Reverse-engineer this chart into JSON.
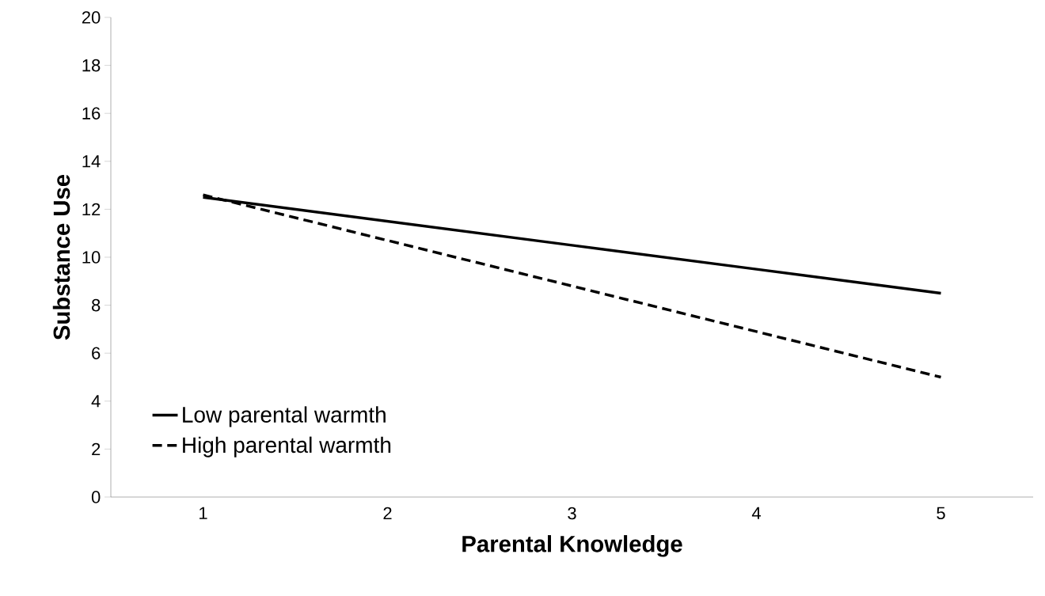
{
  "chart_data": {
    "type": "line",
    "xlabel": "Parental Knowledge",
    "ylabel": "Substance Use",
    "categories": [
      "1",
      "2",
      "3",
      "4",
      "5"
    ],
    "series": [
      {
        "name": "Low parental warmth",
        "color": "#000000",
        "line_style": "solid",
        "values": [
          12.5,
          11.5,
          10.5,
          9.5,
          8.5
        ]
      },
      {
        "name": "High parental warmth",
        "color": "#000000",
        "line_style": "dashed",
        "values": [
          12.6,
          10.7,
          8.8,
          6.9,
          5.0
        ]
      }
    ],
    "ylim": [
      0,
      20
    ],
    "yticks": [
      0,
      2,
      4,
      6,
      8,
      10,
      12,
      14,
      16,
      18,
      20
    ],
    "grid": false,
    "legend": "bottom left",
    "marker": "none"
  }
}
